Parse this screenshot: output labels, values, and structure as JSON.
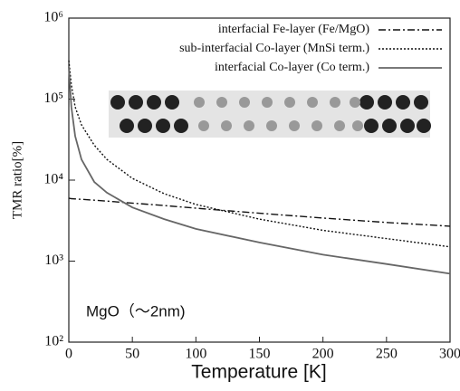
{
  "chart_data": {
    "type": "line",
    "xlabel": "Temperature [K]",
    "ylabel": "TMR ratio[%]",
    "annotation": "MgO（～2nm)",
    "x": [
      0,
      2,
      5,
      10,
      20,
      30,
      50,
      75,
      100,
      150,
      200,
      250,
      300
    ],
    "series": [
      {
        "name": "interfacial Fe-layer (Fe/MgO)",
        "color": "#111111",
        "dash": "dashdot",
        "values": [
          6000,
          5900,
          5850,
          5800,
          5650,
          5500,
          5200,
          4850,
          4500,
          3900,
          3400,
          3000,
          2700
        ]
      },
      {
        "name": "sub-interfacial Co-layer (MnSi term.)",
        "color": "#111111",
        "dash": "dotted",
        "values": [
          300000,
          150000,
          80000,
          48000,
          27000,
          18000,
          10500,
          6800,
          5000,
          3300,
          2400,
          1900,
          1500
        ]
      },
      {
        "name": "interfacial Co-layer (Co term.)",
        "color": "#666666",
        "dash": "solid",
        "values": [
          250000,
          80000,
          35000,
          18000,
          9500,
          7000,
          4600,
          3300,
          2500,
          1700,
          1200,
          920,
          700
        ]
      }
    ],
    "xlim": [
      0,
      300
    ],
    "xticks": [
      0,
      50,
      100,
      150,
      200,
      250,
      300
    ],
    "ylim": [
      100,
      1000000
    ],
    "log_y": true,
    "yticks": [
      {
        "value": 100,
        "label": "10²"
      },
      {
        "value": 1000,
        "label": "10³"
      },
      {
        "value": 10000,
        "label": "10⁴"
      },
      {
        "value": 100000,
        "label": "10⁵"
      },
      {
        "value": 1000000,
        "label": "10⁶"
      }
    ],
    "legend": "upper right"
  }
}
